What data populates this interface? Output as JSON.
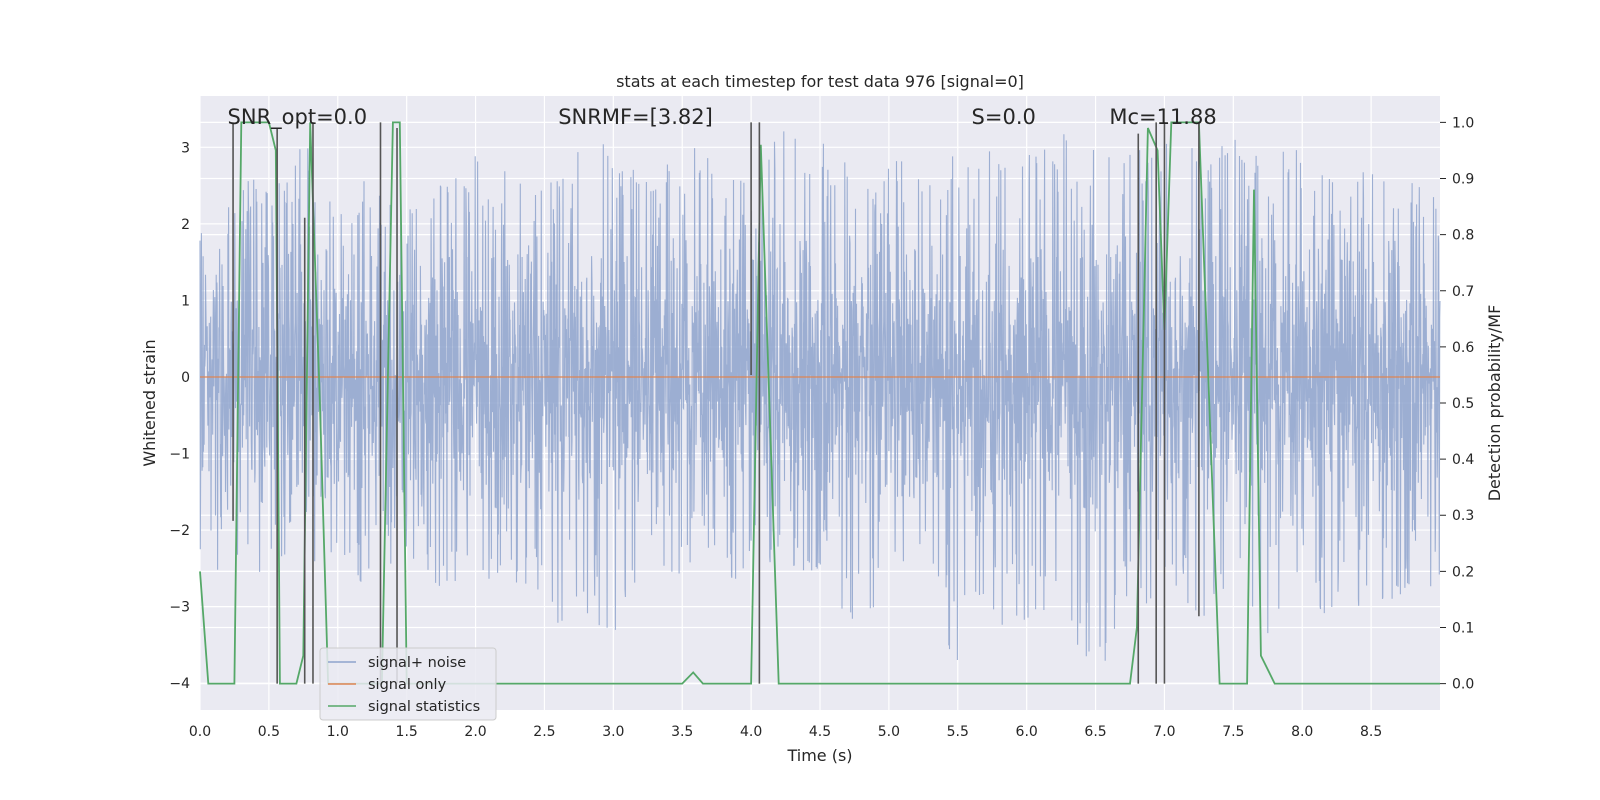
{
  "chart_data": {
    "type": "line",
    "title": "stats at each timestep for test data 976 [signal=0]",
    "xlabel": "Time (s)",
    "ylabel_left": "Whitened strain",
    "ylabel_right": "Detection probability/MF",
    "xlim": [
      0.0,
      9.0
    ],
    "ylim_left": [
      -4.35,
      3.67
    ],
    "ylim_right": [
      -0.047,
      1.047
    ],
    "x_ticks": [
      "0.0",
      "0.5",
      "1.0",
      "1.5",
      "2.0",
      "2.5",
      "3.0",
      "3.5",
      "4.0",
      "4.5",
      "5.0",
      "5.5",
      "6.0",
      "6.5",
      "7.0",
      "7.5",
      "8.0",
      "8.5"
    ],
    "y_ticks_left": [
      "3",
      "2",
      "1",
      "0",
      "−1",
      "−2",
      "−3",
      "−4"
    ],
    "y_ticks_right": [
      "1.0",
      "0.9",
      "0.8",
      "0.7",
      "0.6",
      "0.5",
      "0.4",
      "0.3",
      "0.2",
      "0.1",
      "0.0"
    ],
    "grid": true,
    "legend_position": "lower-left",
    "annotations": [
      {
        "text": "SNR_opt=0.0",
        "x": 0.2
      },
      {
        "text": "SNRMF=[3.82]",
        "x": 2.6
      },
      {
        "text": "S=0.0",
        "x": 5.6
      },
      {
        "text": "Mc=11.88",
        "x": 6.6
      }
    ],
    "noise_envelope": {
      "typical_abs": 1.8,
      "x": [
        0.0,
        0.25,
        0.5,
        0.75,
        1.0,
        1.25,
        1.5,
        1.75,
        2.0,
        2.25,
        2.5,
        2.75,
        3.0,
        3.25,
        3.5,
        3.75,
        4.0,
        4.25,
        4.5,
        4.75,
        5.0,
        5.25,
        5.5,
        5.75,
        6.0,
        6.25,
        6.5,
        6.75,
        7.0,
        7.25,
        7.5,
        7.75,
        8.0,
        8.25,
        8.5,
        8.75,
        9.0
      ],
      "max": [
        1.9,
        2.6,
        2.7,
        3.1,
        2.6,
        2.6,
        2.4,
        2.5,
        2.9,
        2.7,
        2.5,
        3.0,
        3.1,
        2.6,
        3.1,
        2.8,
        2.6,
        3.3,
        3.1,
        2.7,
        2.8,
        3.1,
        2.9,
        3.1,
        2.9,
        3.2,
        3.0,
        3.0,
        3.1,
        3.0,
        3.2,
        2.9,
        3.0,
        2.6,
        2.7,
        2.6,
        2.3
      ],
      "min": [
        -2.7,
        -2.4,
        -2.6,
        -2.2,
        -2.9,
        -2.6,
        -2.3,
        -2.8,
        -2.7,
        -2.6,
        -3.1,
        -3.5,
        -3.4,
        -2.7,
        -2.6,
        -2.9,
        -2.5,
        -2.8,
        -2.6,
        -3.3,
        -3.0,
        -2.6,
        -3.9,
        -3.3,
        -3.2,
        -3.1,
        -4.0,
        -3.0,
        -3.0,
        -3.2,
        -3.0,
        -3.4,
        -3.2,
        -3.1,
        -3.4,
        -2.9,
        -2.7
      ]
    },
    "signal_only": {
      "x": [
        0.0,
        9.0
      ],
      "y": [
        0.0,
        0.0
      ]
    },
    "signal_statistics": {
      "x": [
        0.0,
        0.06,
        0.1,
        0.25,
        0.3,
        0.35,
        0.5,
        0.55,
        0.58,
        0.62,
        0.7,
        0.75,
        0.8,
        0.87,
        0.93,
        1.32,
        1.4,
        1.45,
        1.5,
        3.5,
        3.58,
        3.65,
        3.7,
        4.0,
        4.07,
        4.2,
        6.75,
        6.8,
        6.88,
        6.95,
        7.0,
        7.05,
        7.25,
        7.4,
        7.6,
        7.65,
        7.7,
        7.8,
        7.95,
        8.0,
        9.0
      ],
      "y": [
        0.2,
        0.0,
        0.0,
        0.0,
        1.0,
        1.0,
        1.0,
        0.95,
        0.0,
        0.0,
        0.0,
        0.05,
        1.0,
        0.5,
        0.0,
        0.0,
        1.0,
        1.0,
        0.0,
        0.0,
        0.02,
        0.0,
        0.0,
        0.0,
        0.96,
        0.0,
        0.0,
        0.1,
        0.99,
        0.95,
        0.63,
        1.0,
        1.0,
        0.0,
        0.0,
        0.88,
        0.05,
        0.0,
        0.0,
        0.0,
        0.0
      ]
    },
    "vertical_markers": [
      {
        "x": 0.24,
        "y0": 0.29,
        "y1": 1.0
      },
      {
        "x": 0.56,
        "y0": 0.0,
        "y1": 0.99
      },
      {
        "x": 0.76,
        "y0": 0.0,
        "y1": 0.83
      },
      {
        "x": 0.82,
        "y0": 0.0,
        "y1": 1.0
      },
      {
        "x": 1.31,
        "y0": 0.0,
        "y1": 1.0
      },
      {
        "x": 1.43,
        "y0": 0.0,
        "y1": 0.99
      },
      {
        "x": 4.0,
        "y0": 0.55,
        "y1": 1.0
      },
      {
        "x": 4.06,
        "y0": 0.0,
        "y1": 1.0
      },
      {
        "x": 6.81,
        "y0": 0.0,
        "y1": 0.98
      },
      {
        "x": 6.94,
        "y0": 0.0,
        "y1": 1.0
      },
      {
        "x": 7.0,
        "y0": 0.0,
        "y1": 1.0
      },
      {
        "x": 7.25,
        "y0": 0.12,
        "y1": 1.0
      }
    ],
    "series": [
      {
        "name": "signal+ noise",
        "color": "#8ea3cc"
      },
      {
        "name": "signal only",
        "color": "#dd8452"
      },
      {
        "name": "signal statistics",
        "color": "#55a868"
      }
    ]
  }
}
